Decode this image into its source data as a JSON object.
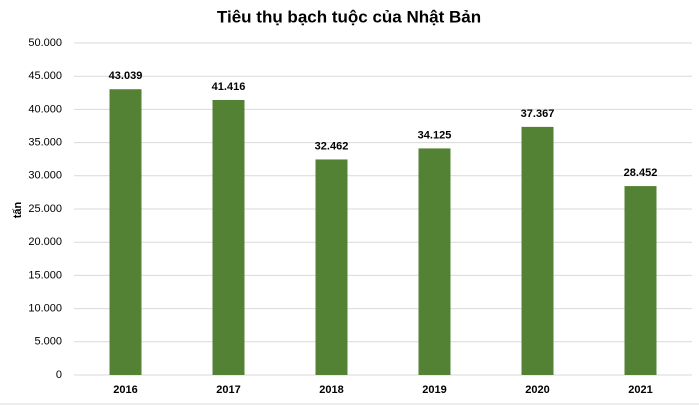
{
  "chart_data": {
    "type": "bar",
    "title": "Tiêu thụ bạch tuộc của Nhật Bản",
    "y_label": "tấn",
    "categories": [
      "2016",
      "2017",
      "2018",
      "2019",
      "2020",
      "2021"
    ],
    "values": [
      43039,
      41416,
      32462,
      34125,
      37367,
      28452
    ],
    "value_labels": [
      "43.039",
      "41.416",
      "32.462",
      "34.125",
      "37.367",
      "28.452"
    ],
    "color": "#548235",
    "ylim": [
      0,
      50000
    ],
    "yticks": [
      0,
      {
        "value": 5000,
        "label": "5.000"
      },
      {
        "value": 10000,
        "label": "10.000"
      },
      {
        "value": 15000,
        "label": "15.000"
      },
      {
        "value": 20000,
        "label": "20.000"
      },
      {
        "value": 25000,
        "label": "25.000"
      },
      {
        "value": 30000,
        "label": "30.000"
      },
      {
        "value": 35000,
        "label": "35.000"
      },
      {
        "value": 40000,
        "label": "40.000"
      },
      {
        "value": 45000,
        "label": "45.000"
      },
      {
        "value": 50000,
        "label": "50.000"
      }
    ],
    "grid": true
  }
}
